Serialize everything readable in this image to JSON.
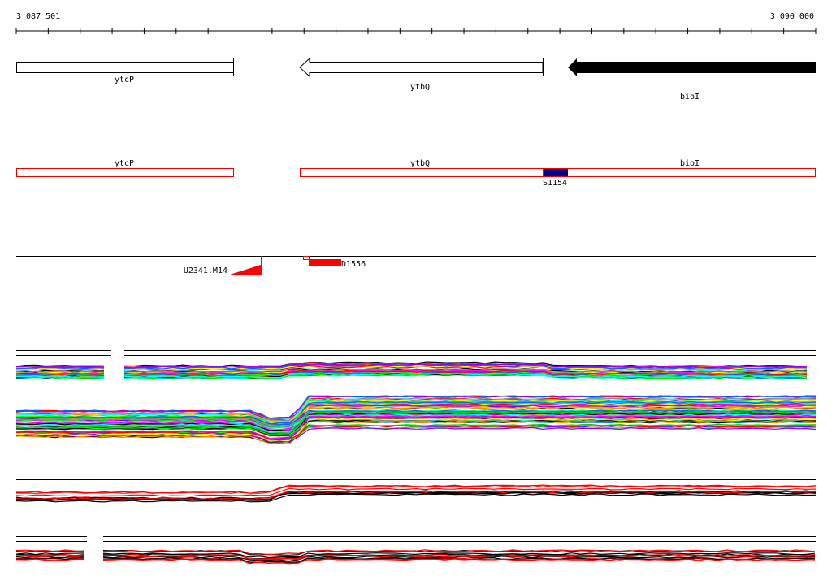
{
  "ruler": {
    "start_label": "3 087 501",
    "end_label": "3 090 000"
  },
  "genes_track": [
    {
      "name": "ytcP",
      "strand": "+",
      "filled": false
    },
    {
      "name": "ytbQ",
      "strand": "-",
      "filled": false
    },
    {
      "name": "bioI",
      "strand": "-",
      "filled": true
    }
  ],
  "annotation_track": {
    "genes": [
      "ytcP",
      "ytbQ",
      "bioI"
    ],
    "feature": {
      "label": "S1154",
      "color": "#000088"
    }
  },
  "features_track": {
    "left_label": "U2341.M14",
    "right_label": "D1556",
    "color": "#ff0000"
  },
  "colors": {
    "outline": "#ff0000",
    "feature_blue": "#000088",
    "primary": "#000000"
  }
}
